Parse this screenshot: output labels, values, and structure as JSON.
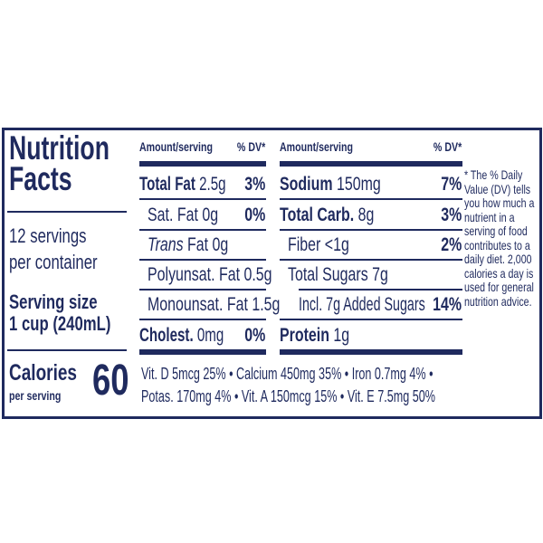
{
  "title": [
    "Nutrition",
    "Facts"
  ],
  "servings": [
    "12 servings",
    "per container"
  ],
  "serving_size": {
    "label": "Serving size",
    "value": "1 cup (240mL)"
  },
  "calories": {
    "label": "Calories",
    "sub": "per serving",
    "value": "60"
  },
  "header": {
    "amount": "Amount/serving",
    "dv": "% DV*"
  },
  "left_rows": [
    {
      "bold": "Total Fat",
      "amount": "2.5g",
      "dv": "3%"
    },
    {
      "bold": "",
      "amount": "Sat. Fat 0g",
      "dv": "0%"
    },
    {
      "italic": "Trans",
      "amount": "Fat 0g",
      "dv": ""
    },
    {
      "bold": "",
      "amount": "Polyunsat. Fat 0.5g",
      "dv": ""
    },
    {
      "bold": "",
      "amount": "Monounsat. Fat 1.5g",
      "dv": ""
    },
    {
      "bold": "Cholest.",
      "amount": "0mg",
      "dv": "0%"
    }
  ],
  "right_rows": [
    {
      "bold": "Sodium",
      "amount": "150mg",
      "dv": "7%"
    },
    {
      "bold": "Total Carb.",
      "amount": "8g",
      "dv": "3%"
    },
    {
      "bold": "",
      "amount": "Fiber <1g",
      "dv": "2%"
    },
    {
      "bold": "",
      "amount": "Total Sugars 7g",
      "dv": ""
    },
    {
      "bold": "",
      "amount": "Incl. 7g Added Sugars",
      "dv": "14%"
    },
    {
      "bold": "Protein",
      "amount": "1g",
      "dv": ""
    }
  ],
  "vitamins": [
    "Vit. D 5mcg 25% • Calcium 450mg 35% • Iron 0.7mg 4% •",
    "Potas. 170mg 4% • Vit. A 150mcg 15% • Vit. E 7.5mg 50%"
  ],
  "footnote": "* The % Daily Value (DV) tells you how much a nutrient in a serving of food contributes to a daily diet. 2,000 calories a day is used for general nutrition advice.",
  "colors": {
    "ink": "#1f2a5e",
    "background": "#ffffff"
  }
}
